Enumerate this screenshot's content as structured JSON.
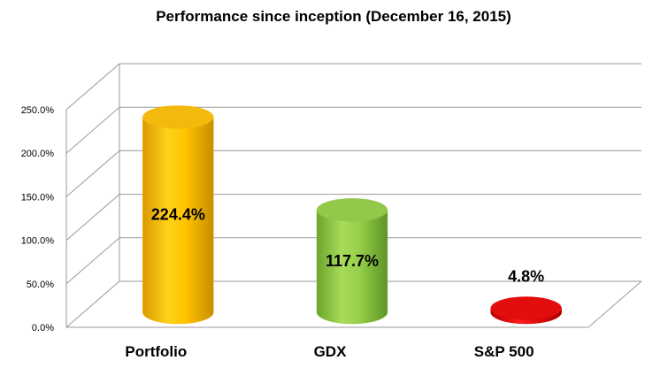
{
  "chart_data": {
    "type": "bar",
    "title": "Performance since inception (December 16, 2015)",
    "categories": [
      "Portfolio",
      "GDX",
      "S&P 500"
    ],
    "values": [
      224.4,
      117.7,
      4.8
    ],
    "data_labels": [
      "224.4%",
      "117.7%",
      "4.8%"
    ],
    "y_ticks": [
      "0.0%",
      "50.0%",
      "100.0%",
      "150.0%",
      "200.0%",
      "250.0%"
    ],
    "ylim": [
      0,
      250
    ],
    "grid": true,
    "legend": "none",
    "style": "3d-cylinder",
    "colors": [
      "#f2b600",
      "#8cc63f",
      "#e00000"
    ]
  }
}
